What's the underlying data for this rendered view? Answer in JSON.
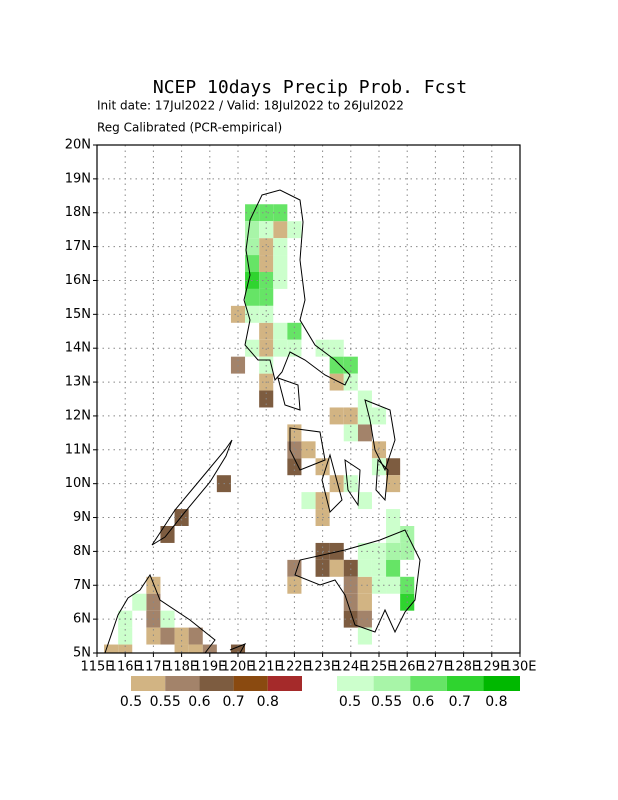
{
  "chart_data": {
    "type": "map",
    "title": "NCEP 10days Precip Prob. Fcst",
    "subtitle": "Init date: 17Jul2022 / Valid: 18Jul2022 to 26Jul2022",
    "note": "Reg Calibrated (PCR-empirical)",
    "xlim": [
      115,
      130
    ],
    "ylim": [
      5,
      20
    ],
    "grid": true,
    "xticks": [
      {
        "value": 115,
        "label": "115E"
      },
      {
        "value": 116,
        "label": "116E"
      },
      {
        "value": 117,
        "label": "117E"
      },
      {
        "value": 118,
        "label": "118E"
      },
      {
        "value": 119,
        "label": "119E"
      },
      {
        "value": 120,
        "label": "120E"
      },
      {
        "value": 121,
        "label": "121E"
      },
      {
        "value": 122,
        "label": "122E"
      },
      {
        "value": 123,
        "label": "123E"
      },
      {
        "value": 124,
        "label": "124E"
      },
      {
        "value": 125,
        "label": "125E"
      },
      {
        "value": 126,
        "label": "126E"
      },
      {
        "value": 127,
        "label": "127E"
      },
      {
        "value": 128,
        "label": "128E"
      },
      {
        "value": 129,
        "label": "129E"
      },
      {
        "value": 130,
        "label": "130E"
      }
    ],
    "yticks": [
      {
        "value": 5,
        "label": "5N"
      },
      {
        "value": 6,
        "label": "6N"
      },
      {
        "value": 7,
        "label": "7N"
      },
      {
        "value": 8,
        "label": "8N"
      },
      {
        "value": 9,
        "label": "9N"
      },
      {
        "value": 10,
        "label": "10N"
      },
      {
        "value": 11,
        "label": "11N"
      },
      {
        "value": 12,
        "label": "12N"
      },
      {
        "value": 13,
        "label": "13N"
      },
      {
        "value": 14,
        "label": "14N"
      },
      {
        "value": 15,
        "label": "15N"
      },
      {
        "value": 16,
        "label": "16N"
      },
      {
        "value": 17,
        "label": "17N"
      },
      {
        "value": 18,
        "label": "18N"
      },
      {
        "value": 19,
        "label": "19N"
      },
      {
        "value": 20,
        "label": "20N"
      }
    ],
    "dry": {
      "levels": [
        0.5,
        0.55,
        0.6,
        0.7,
        0.8
      ],
      "colors": [
        "#d2b483",
        "#a3836a",
        "#7d5c40",
        "#8a4a10",
        "#a52a2a"
      ],
      "cells": [
        [
          121.5,
          17.5,
          0.5
        ],
        [
          121,
          17,
          0.5
        ],
        [
          121,
          16.5,
          0.5
        ],
        [
          120,
          15,
          0.5
        ],
        [
          121,
          14.5,
          0.5
        ],
        [
          121,
          14,
          0.5
        ],
        [
          120,
          13.5,
          0.55
        ],
        [
          121,
          13,
          0.5
        ],
        [
          123.5,
          13,
          0.5
        ],
        [
          121,
          12.5,
          0.6
        ],
        [
          123.5,
          12,
          0.5
        ],
        [
          124,
          12,
          0.5
        ],
        [
          122,
          11.5,
          0.5
        ],
        [
          124.5,
          11.5,
          0.55
        ],
        [
          122,
          11,
          0.55
        ],
        [
          122.5,
          11,
          0.5
        ],
        [
          125,
          11,
          0.5
        ],
        [
          122,
          10.5,
          0.6
        ],
        [
          123,
          10.5,
          0.5
        ],
        [
          125.5,
          10.5,
          0.6
        ],
        [
          123.5,
          10,
          0.5
        ],
        [
          125.5,
          10,
          0.5
        ],
        [
          119.5,
          10,
          0.6
        ],
        [
          123,
          9.5,
          0.5
        ],
        [
          123,
          9,
          0.5
        ],
        [
          118,
          9,
          0.6
        ],
        [
          117.5,
          8.5,
          0.6
        ],
        [
          123,
          8,
          0.6
        ],
        [
          123.5,
          8,
          0.6
        ],
        [
          122,
          7.5,
          0.55
        ],
        [
          123,
          7.5,
          0.6
        ],
        [
          123.5,
          7.5,
          0.5
        ],
        [
          124,
          7.5,
          0.6
        ],
        [
          122,
          7,
          0.5
        ],
        [
          124,
          7,
          0.55
        ],
        [
          124.5,
          7,
          0.5
        ],
        [
          117,
          7,
          0.5
        ],
        [
          124,
          6.5,
          0.55
        ],
        [
          124.5,
          6.5,
          0.5
        ],
        [
          117,
          6.5,
          0.55
        ],
        [
          124,
          6,
          0.6
        ],
        [
          124.5,
          6,
          0.55
        ],
        [
          117,
          6,
          0.55
        ],
        [
          117,
          5.5,
          0.5
        ],
        [
          117.5,
          5.5,
          0.55
        ],
        [
          118,
          5.5,
          0.5
        ],
        [
          118.5,
          5.5,
          0.55
        ],
        [
          115.5,
          5,
          0.5
        ],
        [
          116,
          5,
          0.5
        ],
        [
          118,
          5,
          0.5
        ],
        [
          118.5,
          5,
          0.5
        ],
        [
          119,
          5,
          0.55
        ],
        [
          120,
          5,
          0.6
        ]
      ]
    },
    "wet": {
      "levels": [
        0.5,
        0.55,
        0.6,
        0.7,
        0.8
      ],
      "colors": [
        "#ccffcc",
        "#a8f5a8",
        "#66e466",
        "#2fd42f",
        "#00b800"
      ],
      "cells": [
        [
          120.5,
          18,
          0.6
        ],
        [
          121,
          18,
          0.6
        ],
        [
          121.5,
          18,
          0.6
        ],
        [
          120.5,
          17.5,
          0.55
        ],
        [
          121,
          17.5,
          0.5
        ],
        [
          122,
          17.5,
          0.5
        ],
        [
          120.5,
          17,
          0.55
        ],
        [
          121.5,
          17,
          0.5
        ],
        [
          120.5,
          16.5,
          0.6
        ],
        [
          121.5,
          16.5,
          0.5
        ],
        [
          120.5,
          16,
          0.7
        ],
        [
          121,
          16,
          0.6
        ],
        [
          121.5,
          16,
          0.5
        ],
        [
          120.5,
          15.5,
          0.6
        ],
        [
          121,
          15.5,
          0.6
        ],
        [
          120.5,
          15,
          0.5
        ],
        [
          121,
          15,
          0.5
        ],
        [
          121.5,
          14.5,
          0.5
        ],
        [
          122,
          14.5,
          0.6
        ],
        [
          120.5,
          14,
          0.5
        ],
        [
          121.5,
          14,
          0.5
        ],
        [
          122,
          14,
          0.5
        ],
        [
          123,
          14,
          0.5
        ],
        [
          123.5,
          14,
          0.5
        ],
        [
          121,
          13.5,
          0.5
        ],
        [
          123.5,
          13.5,
          0.6
        ],
        [
          124,
          13.5,
          0.6
        ],
        [
          124,
          13,
          0.5
        ],
        [
          124.5,
          12.5,
          0.5
        ],
        [
          124.5,
          12,
          0.5
        ],
        [
          125,
          12,
          0.5
        ],
        [
          124,
          11.5,
          0.5
        ],
        [
          125,
          10.5,
          0.5
        ],
        [
          124,
          10,
          0.5
        ],
        [
          122.5,
          9.5,
          0.5
        ],
        [
          124.5,
          9.5,
          0.5
        ],
        [
          125.5,
          9,
          0.5
        ],
        [
          125.5,
          8.5,
          0.5
        ],
        [
          126,
          8.5,
          0.55
        ],
        [
          124.5,
          8,
          0.5
        ],
        [
          125,
          8,
          0.5
        ],
        [
          125.5,
          8,
          0.55
        ],
        [
          126,
          8,
          0.55
        ],
        [
          124.5,
          7.5,
          0.5
        ],
        [
          125,
          7.5,
          0.5
        ],
        [
          125.5,
          7.5,
          0.6
        ],
        [
          125,
          7,
          0.5
        ],
        [
          125.5,
          7,
          0.5
        ],
        [
          126,
          7,
          0.6
        ],
        [
          126,
          6.5,
          0.7
        ],
        [
          116.5,
          6.5,
          0.5
        ],
        [
          116,
          6,
          0.5
        ],
        [
          117.5,
          6,
          0.5
        ],
        [
          116,
          5.5,
          0.5
        ],
        [
          124.5,
          5.5,
          0.5
        ]
      ]
    }
  }
}
